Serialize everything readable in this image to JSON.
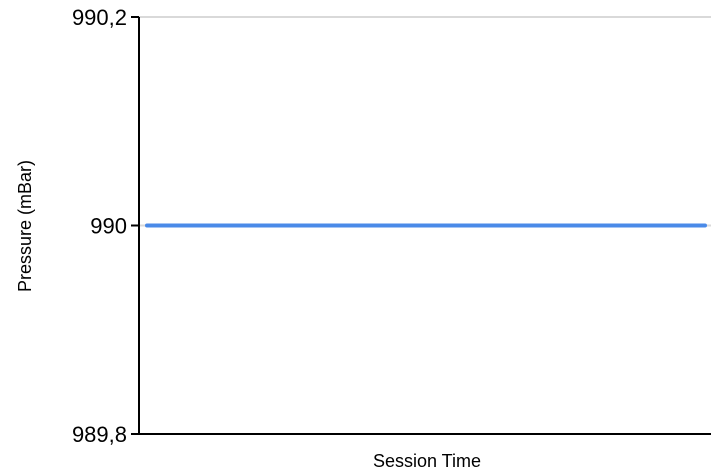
{
  "chart_data": {
    "type": "line",
    "title": "",
    "xlabel": "Session Time",
    "ylabel": "Pressure (mBar)",
    "ylim": [
      989.8,
      990.2
    ],
    "yticks": [
      {
        "value": 989.8,
        "label": "989,8"
      },
      {
        "value": 990.0,
        "label": "990"
      },
      {
        "value": 990.2,
        "label": "990,2"
      }
    ],
    "grid": true,
    "series": [
      {
        "color": "#4a8ae8",
        "x": [
          0,
          1
        ],
        "y": [
          990,
          990
        ]
      }
    ]
  },
  "colors": {
    "axis": "#000000",
    "grid": "#d9d9d9",
    "line": "#4a8ae8"
  }
}
